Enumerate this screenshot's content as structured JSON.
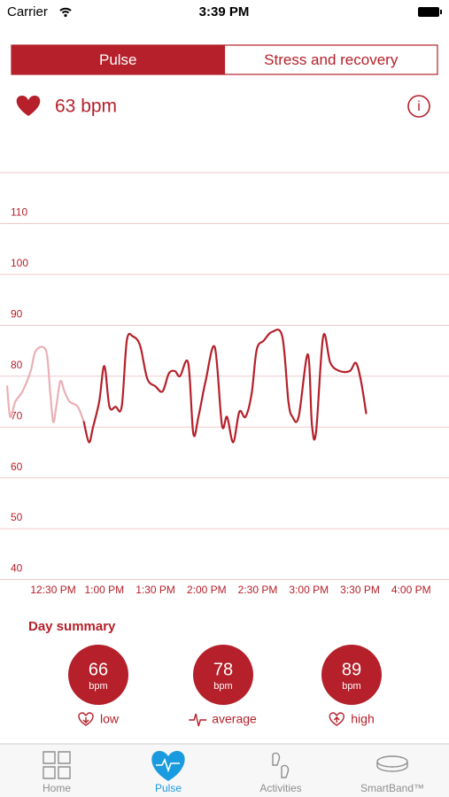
{
  "status_bar": {
    "carrier": "Carrier",
    "time": "3:39 PM"
  },
  "segments": {
    "items": [
      "Pulse",
      "Stress and recovery"
    ],
    "selected": 0
  },
  "current": "63 bpm",
  "chart_data": {
    "type": "line",
    "series": [
      {
        "color": "#eab0b5",
        "x": [
          12.05,
          12.08,
          12.13,
          12.2,
          12.28,
          12.33,
          12.43,
          12.47,
          12.5,
          12.53,
          12.57,
          12.61,
          12.66,
          12.74,
          12.8
        ],
        "values": [
          78,
          72,
          75,
          77,
          81,
          85,
          85,
          77,
          71,
          74,
          79,
          77,
          75,
          74,
          71
        ]
      },
      {
        "color": "#b5202a",
        "x": [
          12.8,
          12.85,
          12.89,
          12.95,
          13.0,
          13.05,
          13.11,
          13.17,
          13.22,
          13.28,
          13.35,
          13.42,
          13.5,
          13.57,
          13.63,
          13.69,
          13.74,
          13.82,
          13.87,
          13.92,
          13.99,
          14.08,
          14.15,
          14.2,
          14.26,
          14.32,
          14.38,
          14.44,
          14.49,
          14.56,
          14.64,
          14.74,
          14.8,
          14.84,
          14.9,
          14.99,
          15.03,
          15.07,
          15.14,
          15.21,
          15.3,
          15.4,
          15.46,
          15.51,
          15.56
        ],
        "values": [
          71,
          67,
          70,
          75,
          82,
          74,
          74,
          74,
          87,
          87.8,
          86,
          79.5,
          78,
          77,
          80.5,
          81,
          80,
          82.6,
          68.7,
          72,
          79,
          85.7,
          70.4,
          72,
          67,
          73,
          72,
          76.5,
          85.2,
          87,
          88.7,
          87.8,
          75,
          72,
          72,
          84.3,
          70.4,
          69,
          87.8,
          82.6,
          81,
          81,
          82.6,
          79,
          72.7
        ]
      }
    ],
    "xlim": [
      11.98,
      16.37
    ],
    "xticks": [
      {
        "value": 12.5,
        "label": "12:30 PM"
      },
      {
        "value": 13,
        "label": "1:00 PM"
      },
      {
        "value": 13.5,
        "label": "1:30 PM"
      },
      {
        "value": 14,
        "label": "2:00 PM"
      },
      {
        "value": 14.5,
        "label": "2:30 PM"
      },
      {
        "value": 15,
        "label": "3:00 PM"
      },
      {
        "value": 15.5,
        "label": "3:30 PM"
      },
      {
        "value": 16,
        "label": "4:00 PM"
      }
    ],
    "ylim": [
      38,
      120
    ],
    "yticks": [
      40,
      50,
      60,
      70,
      80,
      90,
      100,
      110
    ],
    "grid": true
  },
  "day_summary": {
    "title": "Day summary",
    "items": [
      {
        "value": 66,
        "unit": "bpm",
        "label": "low"
      },
      {
        "value": 78,
        "unit": "bpm",
        "label": "average"
      },
      {
        "value": 89,
        "unit": "bpm",
        "label": "high"
      }
    ]
  },
  "tab_bar": {
    "items": [
      "Home",
      "Pulse",
      "Activities",
      "SmartBand™"
    ],
    "selected": 1
  }
}
